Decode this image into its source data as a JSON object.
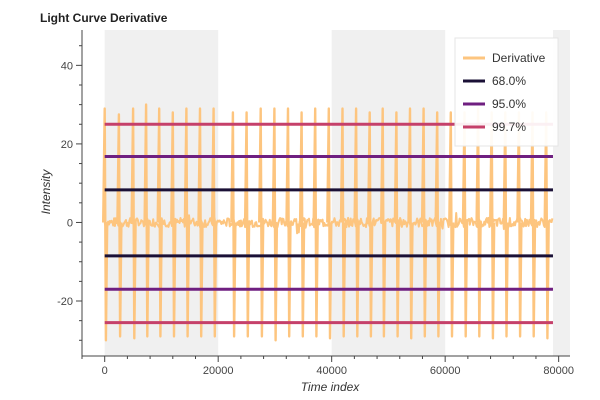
{
  "chart_data": {
    "type": "line",
    "title": "Light Curve Derivative",
    "xlabel": "Time index",
    "ylabel": "Intensity",
    "xlim": [
      -4000,
      82000
    ],
    "ylim": [
      -34,
      49
    ],
    "xticks": [
      0,
      20000,
      40000,
      60000,
      80000
    ],
    "xtick_labels": [
      "0",
      "20000",
      "40000",
      "60000",
      "80000"
    ],
    "yticks": [
      -20,
      0,
      20,
      40
    ],
    "ytick_labels": [
      "-20",
      "0",
      "20",
      "40"
    ],
    "grid": false,
    "background_bands": [
      [
        0,
        20000
      ],
      [
        40000,
        60000
      ],
      [
        79000,
        82000
      ]
    ],
    "legend_position": "top-right",
    "series": [
      {
        "name": "Derivative",
        "color": "#fdc57f",
        "baseline_noise": 1.2,
        "spike_x": [
          0,
          2500,
          5000,
          7300,
          9600,
          12000,
          14400,
          16800,
          19200,
          22600,
          25000,
          27500,
          29900,
          32300,
          34700,
          37100,
          39500,
          41900,
          44300,
          46700,
          49000,
          51400,
          53800,
          56200,
          58600,
          61000,
          63400,
          65800,
          68200,
          70600,
          73000,
          75400,
          77800
        ],
        "spike_high": [
          29,
          27.5,
          29,
          30,
          29,
          28,
          29,
          29,
          29,
          28,
          28,
          29,
          29,
          29,
          28,
          29,
          29,
          29,
          29,
          28,
          29,
          28,
          29,
          29,
          28,
          28,
          28,
          29,
          28,
          28,
          28,
          28,
          28
        ],
        "spike_low": [
          -30,
          -29,
          -29.5,
          -29,
          -29,
          -29,
          -29,
          -29,
          -29,
          -29,
          -29,
          -29,
          -30,
          -29,
          -29,
          -29,
          -29.5,
          -29,
          -29,
          -29,
          -29,
          -29,
          -29.5,
          -29,
          -29,
          -29,
          -29,
          -29,
          -29.5,
          -29,
          -29,
          -29,
          -29.5
        ]
      },
      {
        "name": "68.0%",
        "color": "#1a1036",
        "y": [
          8.3,
          -8.5
        ],
        "x_range": [
          0,
          79000
        ]
      },
      {
        "name": "95.0%",
        "color": "#6f1f80",
        "y": [
          16.8,
          -17.0
        ],
        "x_range": [
          0,
          79000
        ]
      },
      {
        "name": "99.7%",
        "color": "#c5406a",
        "y": [
          25.0,
          -25.5
        ],
        "x_range": [
          0,
          79000
        ]
      }
    ]
  }
}
